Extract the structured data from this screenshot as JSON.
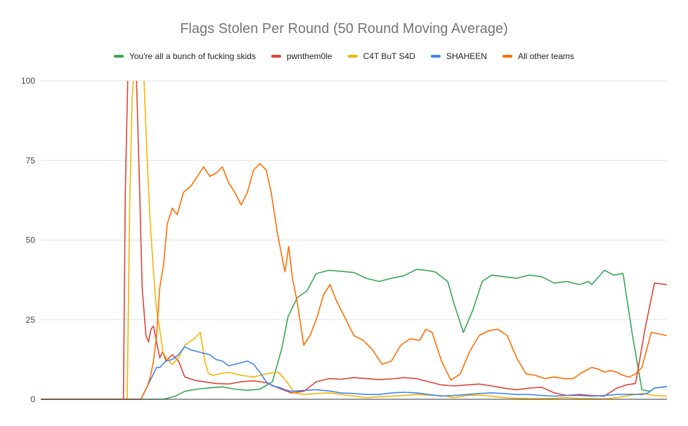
{
  "chart_data": {
    "type": "line",
    "title": "Flags Stolen Per Round (50 Round Moving Average)",
    "xlabel": "",
    "ylabel": "",
    "ylim": [
      0,
      100
    ],
    "yticks": [
      "0",
      "25",
      "50",
      "75",
      "100"
    ],
    "xlim": [
      0,
      1000
    ],
    "grid": true,
    "legend_position": "top",
    "series": [
      {
        "name": "You're all a bunch of fucking skids",
        "color": "#34a853",
        "x": [
          0,
          195,
          200,
          215,
          230,
          250,
          270,
          290,
          310,
          330,
          350,
          370,
          385,
          395,
          410,
          425,
          440,
          460,
          480,
          500,
          520,
          540,
          560,
          580,
          600,
          615,
          630,
          650,
          660,
          675,
          690,
          705,
          720,
          740,
          760,
          780,
          800,
          820,
          840,
          860,
          875,
          880,
          900,
          915,
          930,
          945,
          960,
          973,
          980,
          1000
        ],
        "values": [
          0,
          0,
          0.2,
          1,
          2.5,
          3.2,
          3.6,
          3.9,
          3.2,
          2.8,
          3.2,
          5.5,
          16,
          26,
          32,
          34,
          39.5,
          40.5,
          40.2,
          39.8,
          38,
          37,
          38,
          38.8,
          40.8,
          40.5,
          40,
          37,
          30,
          21,
          28,
          37,
          39,
          38.5,
          38,
          39,
          38.5,
          36.5,
          37,
          36,
          37,
          36,
          40.5,
          39,
          39.5,
          20,
          3,
          2.5,
          3.5,
          4
        ]
      },
      {
        "name": "pwnthem0le",
        "color": "#db4437",
        "x": [
          0,
          132,
          135,
          140,
          145,
          150,
          153,
          158,
          162,
          168,
          172,
          176,
          180,
          185,
          190,
          195,
          200,
          210,
          220,
          230,
          245,
          260,
          280,
          300,
          320,
          340,
          360,
          380,
          400,
          420,
          440,
          460,
          480,
          500,
          520,
          540,
          560,
          580,
          600,
          620,
          640,
          660,
          680,
          700,
          720,
          740,
          760,
          780,
          800,
          820,
          840,
          860,
          880,
          900,
          920,
          935,
          950,
          965,
          980,
          1000
        ],
        "values": [
          0,
          0,
          65,
          110,
          130,
          125,
          100,
          65,
          35,
          20,
          18,
          22,
          23,
          18,
          13,
          15,
          12,
          14,
          12,
          7,
          6,
          5.5,
          5,
          4.8,
          5.5,
          5.8,
          5.2,
          3.5,
          2,
          2.5,
          5.5,
          6.5,
          6.3,
          6.8,
          6.5,
          6.2,
          6.4,
          6.8,
          6.5,
          5.5,
          4.5,
          4.2,
          4.5,
          4.8,
          4.2,
          3.5,
          3,
          3.5,
          3.8,
          2,
          1.2,
          1.5,
          1.2,
          1,
          3.5,
          4.5,
          5,
          22,
          36.5,
          36
        ]
      },
      {
        "name": "C4T BuT S4D",
        "color": "#f4b400",
        "x": [
          0,
          138,
          142,
          146,
          150,
          155,
          160,
          163,
          166,
          170,
          175,
          180,
          185,
          190,
          195,
          200,
          210,
          220,
          230,
          245,
          255,
          262,
          268,
          275,
          285,
          300,
          320,
          340,
          360,
          380,
          395,
          405,
          420,
          440,
          460,
          480,
          500,
          520,
          540,
          560,
          580,
          600,
          620,
          640,
          660,
          680,
          700,
          720,
          740,
          760,
          780,
          800,
          820,
          840,
          860,
          880,
          900,
          920,
          940,
          960,
          980,
          1000
        ],
        "values": [
          0,
          0,
          60,
          95,
          105,
          108,
          112,
          110,
          95,
          75,
          55,
          40,
          28,
          22,
          15,
          13,
          11,
          13,
          17,
          19,
          21,
          12,
          8,
          7.5,
          8,
          8.5,
          7.5,
          7,
          8,
          8.5,
          5,
          2,
          1.5,
          1.8,
          2,
          1.5,
          1,
          0.5,
          0.8,
          1,
          1.2,
          1.5,
          1.3,
          1.2,
          0.5,
          1.2,
          1.3,
          1,
          0.5,
          0.3,
          0.2,
          0.2,
          0.3,
          0.5,
          0.2,
          0.2,
          0.1,
          0.5,
          1.2,
          1.8,
          1.2,
          1
        ]
      },
      {
        "name": "SHAHEEN",
        "color": "#4285f4",
        "x": [
          0,
          156,
          160,
          165,
          170,
          175,
          180,
          185,
          190,
          200,
          210,
          220,
          230,
          240,
          250,
          260,
          270,
          280,
          290,
          300,
          310,
          320,
          330,
          340,
          350,
          360,
          370,
          380,
          390,
          400,
          420,
          440,
          460,
          480,
          500,
          520,
          540,
          560,
          580,
          600,
          620,
          640,
          660,
          680,
          700,
          720,
          740,
          760,
          780,
          800,
          820,
          840,
          860,
          880,
          900,
          920,
          940,
          960,
          970,
          980,
          1000
        ],
        "values": [
          0,
          0,
          0,
          2,
          4,
          6,
          8,
          10,
          10,
          12,
          12.5,
          14,
          16.5,
          15.5,
          15,
          14.5,
          14,
          12.5,
          12,
          10.5,
          11,
          11.5,
          12,
          11,
          8.5,
          5.5,
          4.2,
          3.8,
          3,
          2.5,
          2.8,
          3,
          2.6,
          2,
          1.8,
          1.5,
          1.5,
          2,
          2.2,
          2,
          1.5,
          1,
          1.2,
          1.5,
          1.8,
          2,
          1.8,
          1.5,
          1.5,
          1.2,
          1,
          1.2,
          1.2,
          1,
          1.2,
          1.5,
          1.6,
          1.5,
          2,
          3.5,
          4
        ]
      },
      {
        "name": "All other teams",
        "color": "#ff6d01",
        "x": [
          0,
          156,
          160,
          165,
          170,
          175,
          180,
          185,
          190,
          196,
          202,
          210,
          218,
          228,
          240,
          250,
          260,
          270,
          280,
          290,
          300,
          310,
          320,
          330,
          340,
          350,
          360,
          368,
          378,
          390,
          396,
          402,
          410,
          420,
          430,
          440,
          452,
          462,
          472,
          485,
          500,
          515,
          530,
          545,
          560,
          575,
          590,
          605,
          615,
          625,
          640,
          655,
          670,
          685,
          700,
          715,
          730,
          745,
          760,
          775,
          790,
          805,
          820,
          835,
          850,
          865,
          880,
          890,
          900,
          910,
          920,
          930,
          940,
          950,
          960,
          975,
          1000
        ],
        "values": [
          0,
          0,
          0,
          2,
          4,
          7,
          12,
          20,
          35,
          42,
          55,
          60,
          58,
          65,
          67,
          70,
          73,
          70,
          71,
          73,
          68,
          65,
          61,
          65,
          72,
          74,
          72,
          65,
          52,
          40,
          48,
          38,
          30,
          17,
          20,
          25,
          33,
          36,
          31,
          26,
          20,
          18.5,
          15.5,
          11,
          12,
          17,
          19,
          18.5,
          22,
          21,
          12,
          6,
          8,
          15,
          20,
          21.5,
          22,
          20,
          13,
          8,
          7.5,
          6.5,
          7,
          6.5,
          6.5,
          8.5,
          10,
          9.5,
          8.5,
          9,
          8.5,
          7.5,
          7,
          8,
          10,
          21,
          20
        ]
      }
    ]
  }
}
